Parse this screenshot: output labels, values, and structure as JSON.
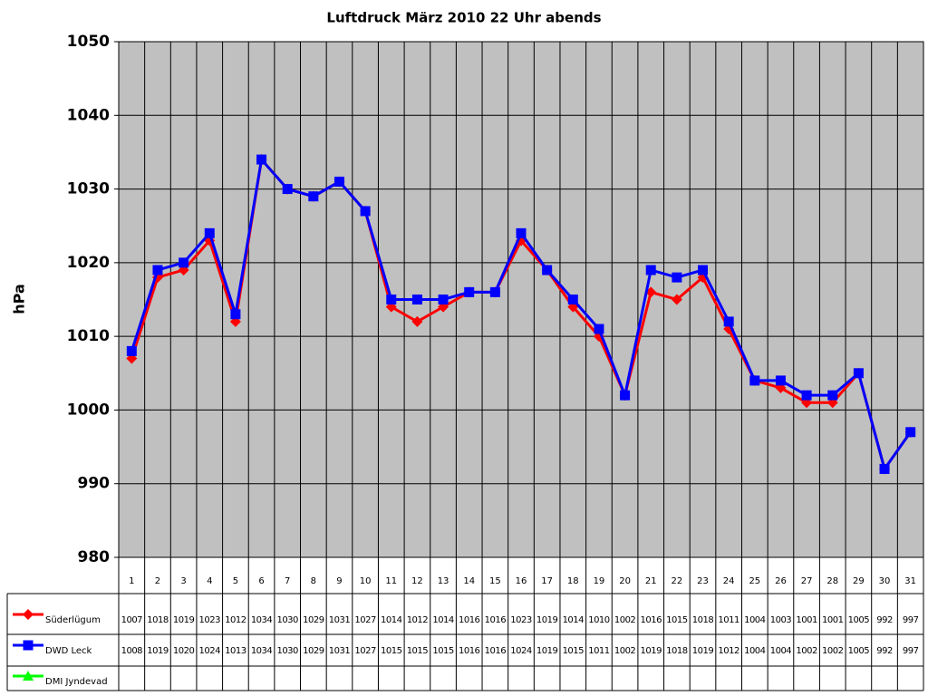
{
  "chart_data": {
    "type": "line",
    "title": "Luftdruck März 2010 22 Uhr abends",
    "y_label": "hPa",
    "categories": [
      "1",
      "2",
      "3",
      "4",
      "5",
      "6",
      "7",
      "8",
      "9",
      "10",
      "11",
      "12",
      "13",
      "14",
      "15",
      "16",
      "17",
      "18",
      "19",
      "20",
      "21",
      "22",
      "23",
      "24",
      "25",
      "26",
      "27",
      "28",
      "29",
      "30",
      "31"
    ],
    "series": [
      {
        "name": "Süderlügum",
        "color": "#ff0000",
        "marker": "diamond",
        "values": [
          1007,
          1018,
          1019,
          1023,
          1012,
          1034,
          1030,
          1029,
          1031,
          1027,
          1014,
          1012,
          1014,
          1016,
          1016,
          1023,
          1019,
          1014,
          1010,
          1002,
          1016,
          1015,
          1018,
          1011,
          1004,
          1003,
          1001,
          1001,
          1005,
          992,
          997
        ]
      },
      {
        "name": "DWD Leck",
        "color": "#0000ff",
        "marker": "square",
        "values": [
          1008,
          1019,
          1020,
          1024,
          1013,
          1034,
          1030,
          1029,
          1031,
          1027,
          1015,
          1015,
          1015,
          1016,
          1016,
          1024,
          1019,
          1015,
          1011,
          1002,
          1019,
          1018,
          1019,
          1012,
          1004,
          1004,
          1002,
          1002,
          1005,
          992,
          997
        ]
      },
      {
        "name": "DMI Jyndevad",
        "color": "#00ff00",
        "marker": "triangle",
        "values": [
          null,
          null,
          null,
          null,
          null,
          null,
          null,
          null,
          null,
          null,
          null,
          null,
          null,
          null,
          null,
          null,
          null,
          null,
          null,
          null,
          null,
          null,
          null,
          null,
          null,
          null,
          null,
          null,
          null,
          null,
          null
        ]
      }
    ],
    "ylim": [
      980,
      1050
    ],
    "yticks": [
      980,
      990,
      1000,
      1010,
      1020,
      1030,
      1040,
      1050
    ],
    "grid": true,
    "data_table": true
  }
}
